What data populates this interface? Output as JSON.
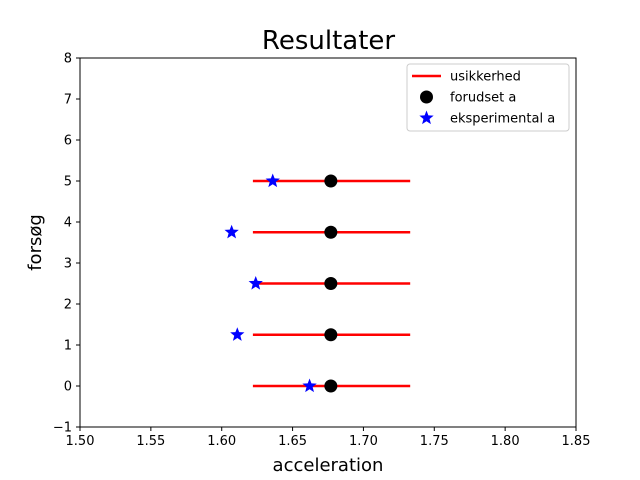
{
  "chart_data": {
    "type": "scatter",
    "title": "Resultater",
    "xlabel": "acceleration",
    "ylabel": "forsøg",
    "xlim": [
      1.5,
      1.85
    ],
    "ylim": [
      -1,
      8
    ],
    "xticks": [
      "1.50",
      "1.55",
      "1.60",
      "1.65",
      "1.70",
      "1.75",
      "1.80",
      "1.85"
    ],
    "yticks": [
      "−1",
      "0",
      "1",
      "2",
      "3",
      "4",
      "5",
      "6",
      "7",
      "8"
    ],
    "grid": false,
    "legend_placement": "top-right",
    "legend": [
      {
        "label": "usikkerhed",
        "marker": "line",
        "color": "#ff0000"
      },
      {
        "label": "forudset a",
        "marker": "circle",
        "color": "#000000"
      },
      {
        "label": "eksperimental a",
        "marker": "star",
        "color": "#0000ff"
      }
    ],
    "series": [
      {
        "name": "usikkerhed",
        "color": "#ff0000",
        "segments": [
          {
            "y": 0,
            "x_min": 1.622,
            "x_max": 1.733
          },
          {
            "y": 1.25,
            "x_min": 1.622,
            "x_max": 1.733
          },
          {
            "y": 2.5,
            "x_min": 1.622,
            "x_max": 1.733
          },
          {
            "y": 3.75,
            "x_min": 1.622,
            "x_max": 1.733
          },
          {
            "y": 5,
            "x_min": 1.622,
            "x_max": 1.733
          }
        ]
      },
      {
        "name": "forudset a",
        "color": "#000000",
        "points": [
          {
            "x": 1.677,
            "y": 0
          },
          {
            "x": 1.677,
            "y": 1.25
          },
          {
            "x": 1.677,
            "y": 2.5
          },
          {
            "x": 1.677,
            "y": 3.75
          },
          {
            "x": 1.677,
            "y": 5
          }
        ]
      },
      {
        "name": "eksperimental a",
        "color": "#0000ff",
        "points": [
          {
            "x": 1.662,
            "y": 0
          },
          {
            "x": 1.611,
            "y": 1.25
          },
          {
            "x": 1.624,
            "y": 2.5
          },
          {
            "x": 1.607,
            "y": 3.75
          },
          {
            "x": 1.636,
            "y": 5
          }
        ]
      }
    ]
  }
}
